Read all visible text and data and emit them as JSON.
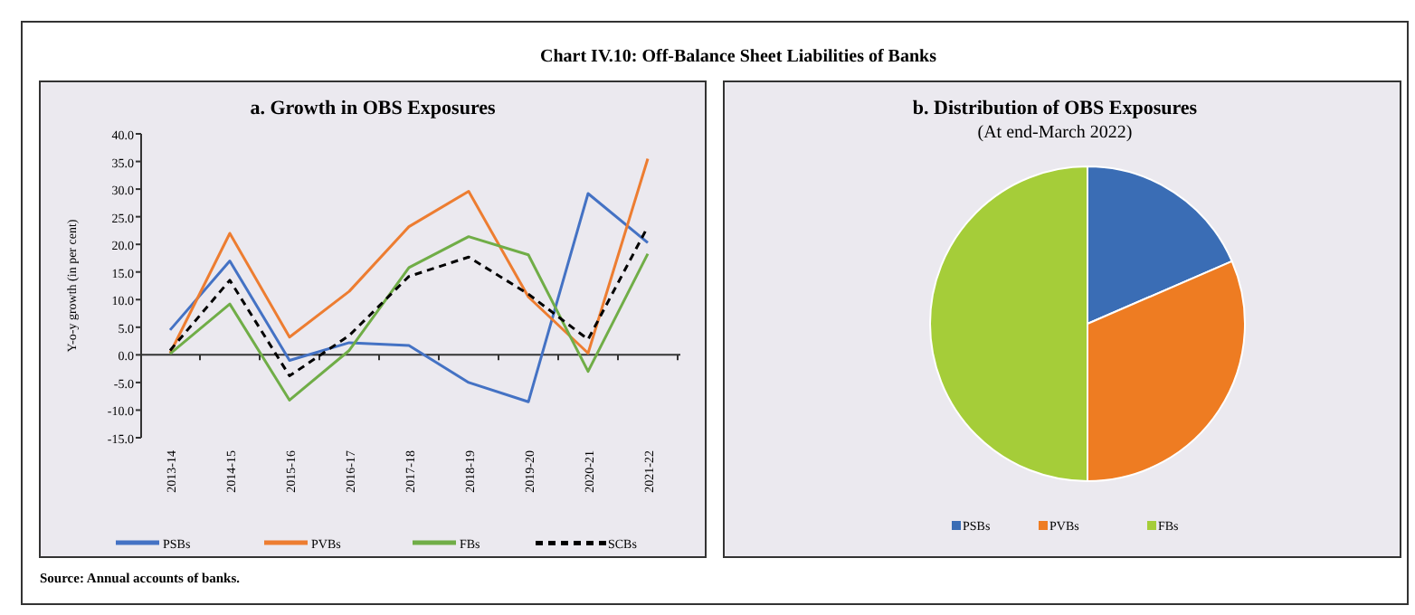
{
  "chart_data": [
    {
      "type": "line",
      "title": "a. Growth in OBS Exposures",
      "ylabel": "Y-o-y growth (in per cent)",
      "categories": [
        "2013-14",
        "2014-15",
        "2015-16",
        "2016-17",
        "2017-18",
        "2018-19",
        "2019-20",
        "2020-21",
        "2021-22"
      ],
      "series": [
        {
          "name": "PSBs",
          "color": "#4472c4",
          "values": [
            4.5,
            17,
            -1,
            2.2,
            1.7,
            -5,
            -8.5,
            29.2,
            20.3
          ]
        },
        {
          "name": "PVBs",
          "color": "#ed7d31",
          "values": [
            0.3,
            22,
            3.2,
            11.5,
            23.2,
            29.6,
            10.5,
            0.3,
            35.5
          ]
        },
        {
          "name": "FBs",
          "color": "#70ad47",
          "values": [
            0.2,
            9.2,
            -8.2,
            0.8,
            15.8,
            21.4,
            18.1,
            -3,
            18.3
          ]
        },
        {
          "name": "SCBs",
          "color": "#000000",
          "line_style": "dashed",
          "values": [
            0.8,
            13.5,
            -3.8,
            3.5,
            14.2,
            17.7,
            11,
            2.8,
            23.2
          ]
        }
      ],
      "ylim": [
        -15,
        40
      ],
      "yticks": [
        {
          "value": -15,
          "label": "-15.0"
        },
        {
          "value": -10,
          "label": "-10.0"
        },
        {
          "value": -5,
          "label": "-5.0"
        },
        {
          "value": 0,
          "label": "0.0"
        },
        {
          "value": 5,
          "label": "5.0"
        },
        {
          "value": 10,
          "label": "10.0"
        },
        {
          "value": 15,
          "label": "15.0"
        },
        {
          "value": 20,
          "label": "20.0"
        },
        {
          "value": 25,
          "label": "25.0"
        },
        {
          "value": 30,
          "label": "30.0"
        },
        {
          "value": 35,
          "label": "35.0"
        },
        {
          "value": 40,
          "label": "40.0"
        }
      ],
      "legend": "bottom",
      "annotations": [
        "Chart IV.10: Off-Balance Sheet Liabilities of Banks",
        "Source: Annual accounts of banks."
      ]
    },
    {
      "type": "pie",
      "title": "b. Distribution of OBS Exposures",
      "subtitle": "(At end-March 2022)",
      "categories": [
        "PSBs",
        "PVBs",
        "FBs"
      ],
      "values": [
        18.5,
        31.5,
        50
      ],
      "colors": [
        "#3a6db5",
        "#ee7c22",
        "#a5cd39"
      ],
      "legend": "bottom"
    }
  ]
}
